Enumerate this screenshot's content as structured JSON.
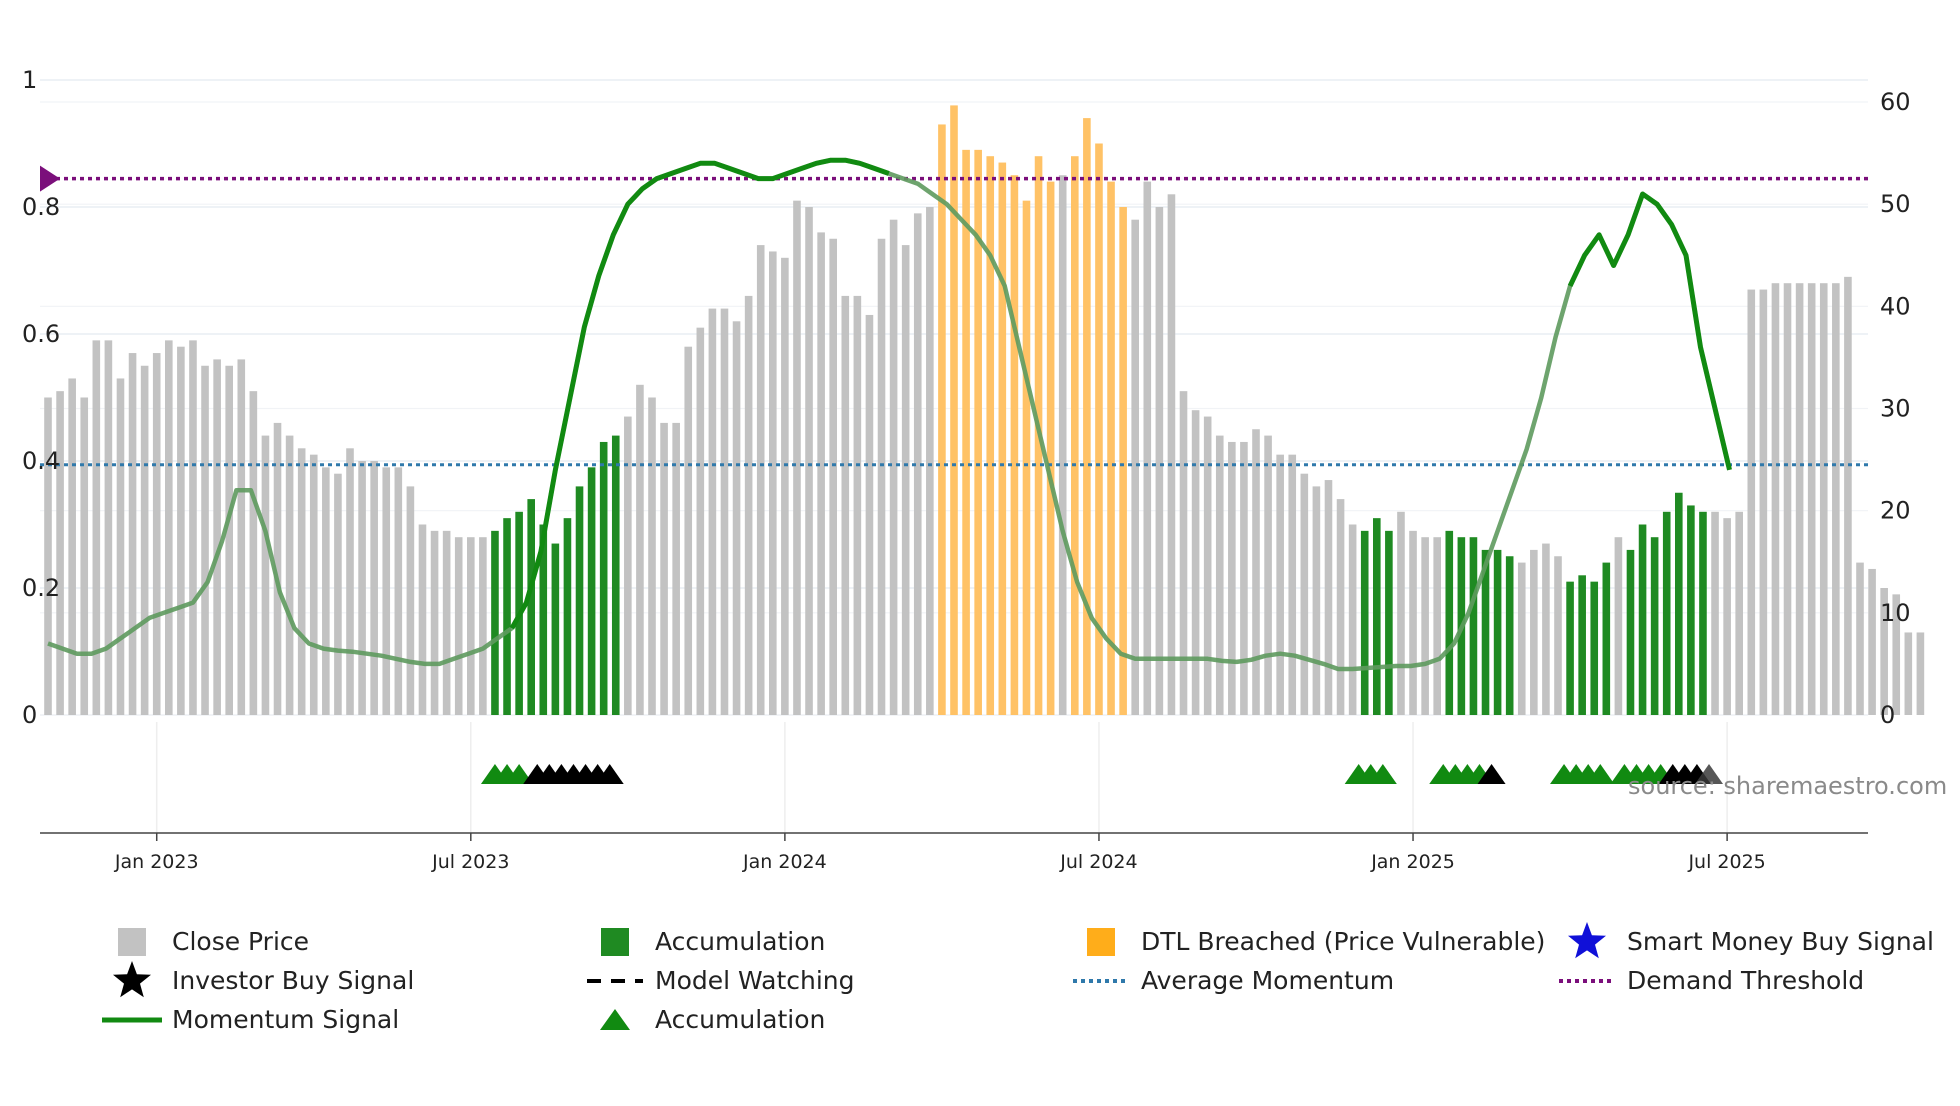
{
  "colors": {
    "close": "#c2c2c2",
    "accumulation": "#1f8a22",
    "dtl": "#ffc266",
    "momentum": "#118a11",
    "momentum_faded": "#5e9a5e",
    "average": "#2f79ab",
    "demand": "#7b0f7b",
    "investor": "#000000",
    "smart": "#1010d8",
    "grid": "#e9eef4"
  },
  "source_text": "source: sharemaestro.com",
  "chart_data": {
    "type": "bar",
    "title": "",
    "xlabel": "",
    "ylabel": "",
    "ylim_left": [
      0,
      1
    ],
    "ylim_right": [
      0,
      60
    ],
    "left_ticks": [
      "0",
      "0.2",
      "0.4",
      "0.6",
      "0.8",
      "1"
    ],
    "right_ticks": [
      "0",
      "10",
      "20",
      "30",
      "40",
      "50",
      "60"
    ],
    "x_start_week": 0,
    "x_end_week": 150,
    "x_ticks": [
      {
        "label": "Jan 2023",
        "week": 9
      },
      {
        "label": "Jul 2023",
        "week": 35
      },
      {
        "label": "Jan 2024",
        "week": 61
      },
      {
        "label": "Jul 2024",
        "week": 87
      },
      {
        "label": "Jan 2025",
        "week": 113
      },
      {
        "label": "Jul 2025",
        "week": 139
      }
    ],
    "close_price": [
      0.5,
      0.51,
      0.53,
      0.5,
      0.59,
      0.59,
      0.53,
      0.57,
      0.55,
      0.57,
      0.59,
      0.58,
      0.59,
      0.55,
      0.56,
      0.55,
      0.56,
      0.51,
      0.44,
      0.46,
      0.44,
      0.42,
      0.41,
      0.39,
      0.38,
      0.42,
      0.4,
      0.4,
      0.39,
      0.39,
      0.36,
      0.3,
      0.29,
      0.29,
      0.28,
      0.28,
      0.28,
      0.29,
      0.31,
      0.32,
      0.34,
      0.3,
      0.27,
      0.31,
      0.36,
      0.39,
      0.43,
      0.44,
      0.47,
      0.52,
      0.5,
      0.46,
      0.46,
      0.58,
      0.61,
      0.64,
      0.64,
      0.62,
      0.66,
      0.74,
      0.73,
      0.72,
      0.81,
      0.8,
      0.76,
      0.75,
      0.66,
      0.66,
      0.63,
      0.75,
      0.78,
      0.74,
      0.79,
      0.8,
      0.93,
      0.96,
      0.89,
      0.89,
      0.88,
      0.87,
      0.85,
      0.81,
      0.88,
      0.84,
      0.85,
      0.88,
      0.94,
      0.9,
      0.84,
      0.8,
      0.78,
      0.84,
      0.8,
      0.82,
      0.51,
      0.48,
      0.47,
      0.44,
      0.43,
      0.43,
      0.45,
      0.44,
      0.41,
      0.41,
      0.38,
      0.36,
      0.37,
      0.34,
      0.3,
      0.29,
      0.31,
      0.29,
      0.32,
      0.29,
      0.28,
      0.28,
      0.29,
      0.28,
      0.28,
      0.26,
      0.26,
      0.25,
      0.24,
      0.26,
      0.27,
      0.25,
      0.21,
      0.22,
      0.21,
      0.24,
      0.28,
      0.26,
      0.3,
      0.28,
      0.32,
      0.35,
      0.33,
      0.32,
      0.32,
      0.31,
      0.32,
      0.67,
      0.67,
      0.68,
      0.68,
      0.68,
      0.68,
      0.68,
      0.68,
      0.69,
      0.24,
      0.23,
      0.2,
      0.19,
      0.13,
      0.13
    ],
    "accumulation_weeks": [
      37,
      38,
      39,
      40,
      41,
      42,
      43,
      44,
      45,
      46,
      47,
      109,
      110,
      111,
      116,
      117,
      118,
      119,
      120,
      121,
      126,
      127,
      128,
      129,
      131,
      132,
      133,
      134,
      135,
      136,
      137
    ],
    "dtl_breached_weeks": [
      74,
      75,
      76,
      77,
      78,
      79,
      80,
      81,
      82,
      83,
      85,
      86,
      87,
      88,
      89
    ],
    "momentum_signal": [
      7,
      6.5,
      6,
      6,
      6.5,
      7.5,
      8.5,
      9.5,
      10,
      10.5,
      11,
      13,
      17,
      22,
      22,
      18,
      12,
      8.5,
      7,
      6.5,
      6.3,
      6.2,
      6,
      5.8,
      5.5,
      5.2,
      5,
      5,
      5.5,
      6,
      6.5,
      7.5,
      8.5,
      11,
      16,
      24,
      31,
      38,
      43,
      47,
      50,
      51.5,
      52.5,
      53,
      53.5,
      54,
      54,
      53.5,
      53,
      52.5,
      52.5,
      53,
      53.5,
      54,
      54.3,
      54.3,
      54,
      53.5,
      53,
      52.5,
      52,
      51,
      50,
      48.5,
      47,
      45,
      42,
      36,
      30,
      24,
      18,
      13,
      9.5,
      7.5,
      6,
      5.5,
      5.5,
      5.5,
      5.5,
      5.5,
      5.5,
      5.3,
      5.2,
      5.4,
      5.8,
      6,
      5.8,
      5.4,
      5,
      4.5,
      4.5,
      4.6,
      4.7,
      4.8,
      4.8,
      5,
      5.5,
      7,
      10,
      14,
      18,
      22,
      26,
      31,
      37,
      42,
      45,
      47,
      44,
      47,
      51,
      50,
      48,
      45,
      36,
      30,
      24
    ],
    "momentum_x_step": 1.2,
    "momentum_bright_ranges": [
      [
        38,
        70
      ],
      [
        126,
        151
      ]
    ],
    "average_momentum": 24.5,
    "demand_threshold": 52.5,
    "signal_markers": [
      {
        "week": 37.0,
        "type": "accumulation"
      },
      {
        "week": 38.0,
        "type": "accumulation"
      },
      {
        "week": 39.0,
        "type": "accumulation"
      },
      {
        "week": 40.5,
        "type": "investor"
      },
      {
        "week": 41.5,
        "type": "investor"
      },
      {
        "week": 42.5,
        "type": "investor"
      },
      {
        "week": 43.5,
        "type": "investor"
      },
      {
        "week": 44.5,
        "type": "investor"
      },
      {
        "week": 45.5,
        "type": "investor"
      },
      {
        "week": 46.5,
        "type": "investor"
      },
      {
        "week": 108.5,
        "type": "accumulation"
      },
      {
        "week": 109.5,
        "type": "accumulation"
      },
      {
        "week": 110.5,
        "type": "accumulation"
      },
      {
        "week": 115.5,
        "type": "accumulation"
      },
      {
        "week": 116.5,
        "type": "accumulation"
      },
      {
        "week": 117.5,
        "type": "accumulation"
      },
      {
        "week": 118.5,
        "type": "accumulation"
      },
      {
        "week": 119.5,
        "type": "investor"
      },
      {
        "week": 125.5,
        "type": "accumulation"
      },
      {
        "week": 126.5,
        "type": "accumulation"
      },
      {
        "week": 127.5,
        "type": "accumulation"
      },
      {
        "week": 128.5,
        "type": "accumulation"
      },
      {
        "week": 130.5,
        "type": "accumulation"
      },
      {
        "week": 131.5,
        "type": "accumulation"
      },
      {
        "week": 132.5,
        "type": "accumulation"
      },
      {
        "week": 133.5,
        "type": "accumulation"
      },
      {
        "week": 134.5,
        "type": "investor"
      },
      {
        "week": 135.5,
        "type": "investor"
      },
      {
        "week": 136.5,
        "type": "investor"
      },
      {
        "week": 137.5,
        "type": "watching"
      }
    ],
    "legend": [
      {
        "label": "Close Price",
        "symbol": "square-gray"
      },
      {
        "label": "Accumulation",
        "symbol": "square-green"
      },
      {
        "label": "DTL Breached (Price Vulnerable)",
        "symbol": "square-orange"
      },
      {
        "label": "Smart Money Buy Signal",
        "symbol": "star-blue"
      },
      {
        "label": "Investor Buy Signal",
        "symbol": "star-black"
      },
      {
        "label": "Model Watching",
        "symbol": "dash-black"
      },
      {
        "label": "Average Momentum",
        "symbol": "dot-blue"
      },
      {
        "label": "Demand Threshold",
        "symbol": "dot-purple"
      },
      {
        "label": "Momentum Signal",
        "symbol": "line-green"
      },
      {
        "label": "Accumulation",
        "symbol": "triangle-green"
      }
    ]
  }
}
